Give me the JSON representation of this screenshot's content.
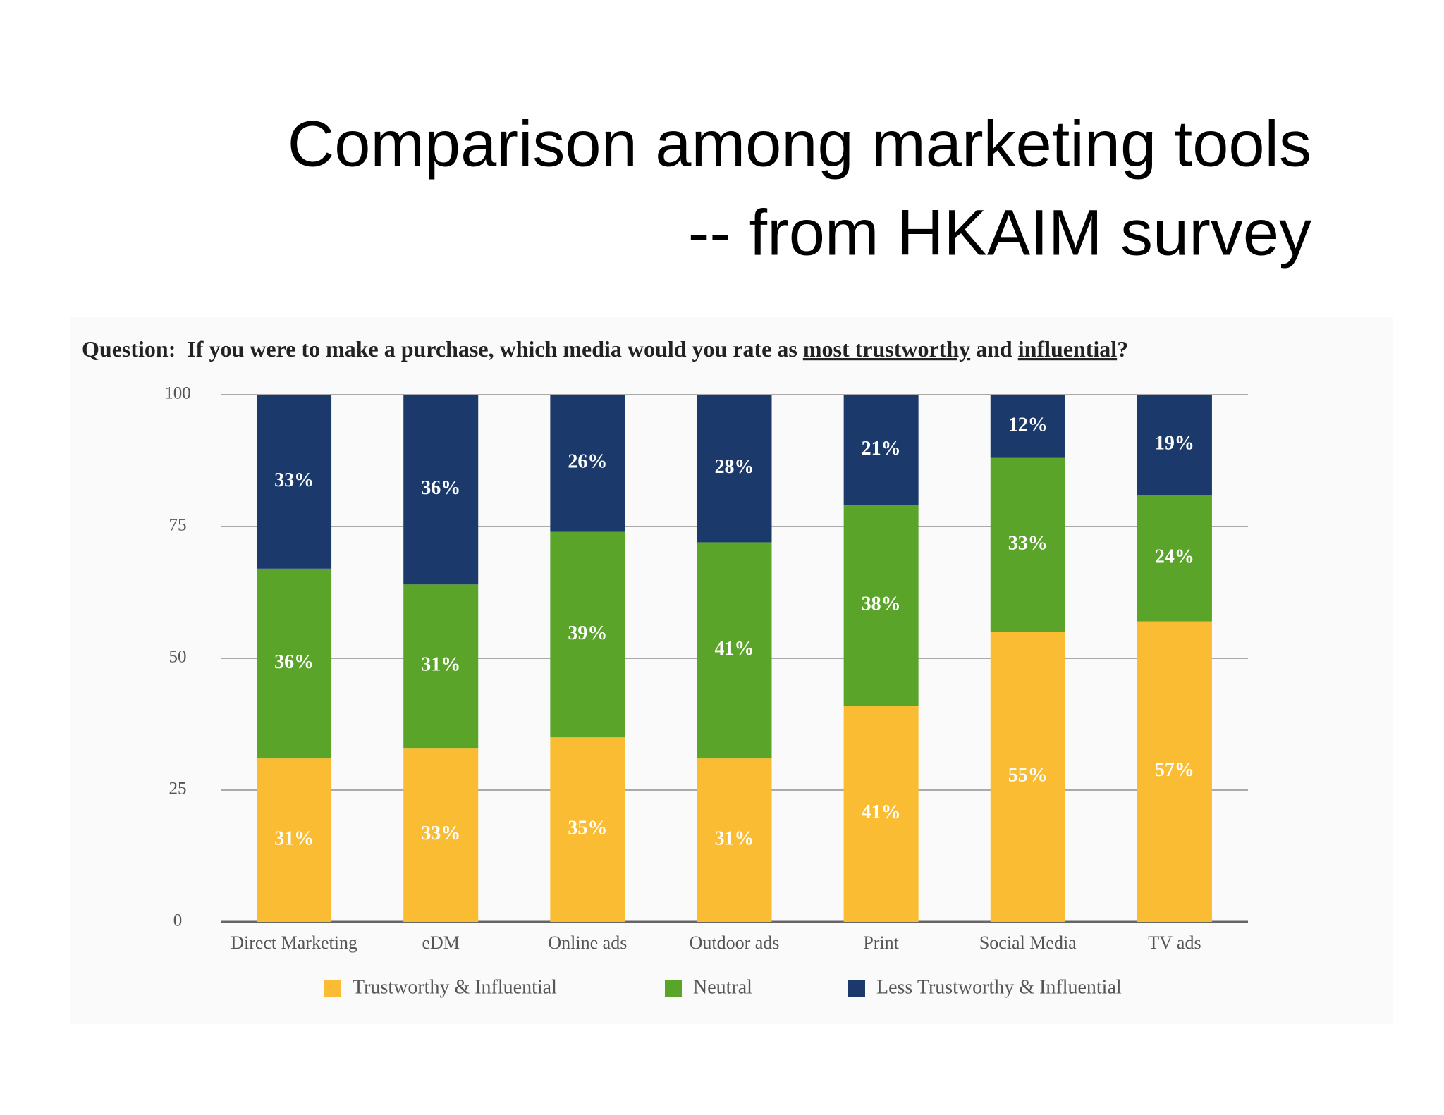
{
  "chart_data": {
    "type": "stacked_bar",
    "title": [
      "Comparison among marketing tools",
      "-- from HKAIM survey"
    ],
    "subtitle": [
      "Question:  If you were to make a purchase, which media would you rate as ",
      "most trustworthy",
      " and ",
      "influential",
      "?"
    ],
    "categories": [
      "Direct Marketing",
      "eDM",
      "Online ads",
      "Outdoor ads",
      "Print",
      "Social Media",
      "TV ads"
    ],
    "series": [
      {
        "name": "Trustworthy & Influential",
        "color": "#f9bc33",
        "values": [
          31,
          33,
          35,
          31,
          41,
          55,
          57
        ],
        "value_labels": [
          "31%",
          "33%",
          "35%",
          "31%",
          "41%",
          "55%",
          "57%"
        ]
      },
      {
        "name": "Neutral",
        "color": "#5aa529",
        "values": [
          36,
          31,
          39,
          41,
          38,
          33,
          24
        ],
        "value_labels": [
          "36%",
          "31%",
          "39%",
          "41%",
          "38%",
          "33%",
          "24%"
        ]
      },
      {
        "name": "Less Trustworthy & Influential",
        "color": "#1b3a6b",
        "values": [
          33,
          36,
          26,
          28,
          21,
          12,
          19
        ],
        "value_labels": [
          "33%",
          "36%",
          "26%",
          "28%",
          "21%",
          "12%",
          "19%"
        ]
      }
    ],
    "ylim": [
      0,
      100
    ],
    "yticks": [
      0,
      25,
      50,
      75,
      100
    ],
    "grid": true
  }
}
